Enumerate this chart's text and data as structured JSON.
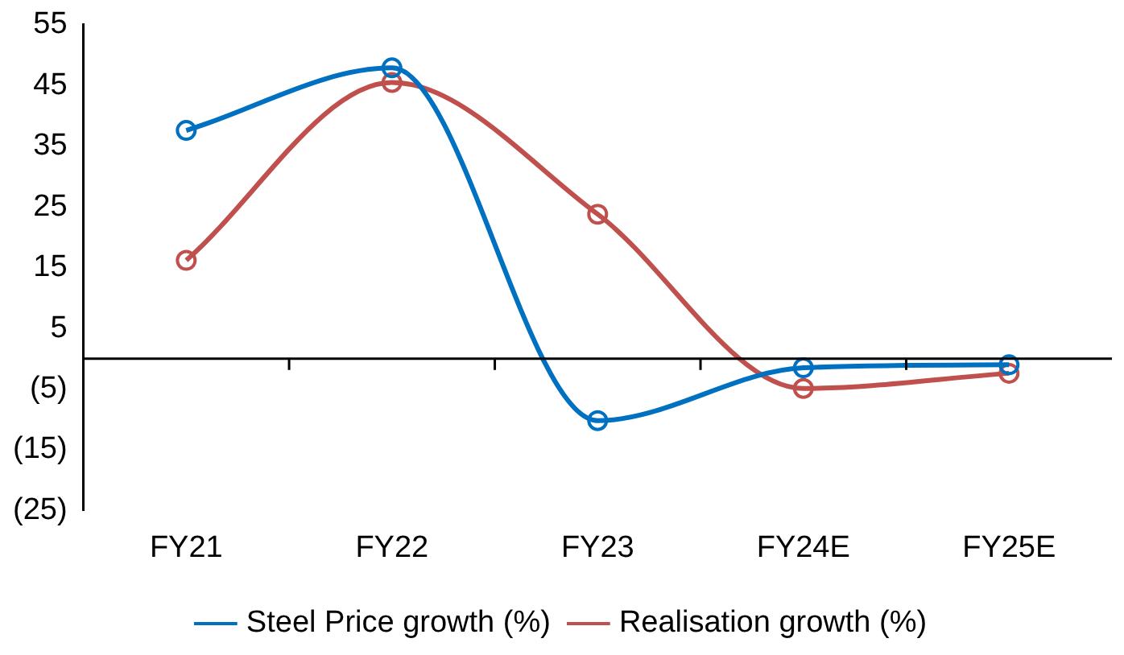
{
  "chart_data": {
    "type": "line",
    "categories": [
      "FY21",
      "FY22",
      "FY23",
      "FY24E",
      "FY25E"
    ],
    "series": [
      {
        "name": "Steel Price growth (%)",
        "color": "#0070c0",
        "values": [
          37.6,
          47.9,
          -10.2,
          -1.5,
          -1
        ]
      },
      {
        "name": "Realisation growth (%)",
        "color": "#c0504d",
        "values": [
          16.2,
          45.5,
          23.8,
          -4.9,
          -2.4
        ]
      }
    ],
    "ylim": [
      -25,
      55
    ],
    "yticks": [
      55,
      45,
      35,
      25,
      15,
      5,
      {
        "value": -5,
        "label": "(5)"
      },
      {
        "value": -15,
        "label": "(15)"
      },
      {
        "value": -25,
        "label": "(25)"
      }
    ],
    "ref_lines": [
      {
        "axis": "y",
        "value": 0,
        "color": "#000000"
      }
    ],
    "grid": false,
    "legend": "bottom",
    "marker": "circle",
    "line_style": "solid"
  }
}
